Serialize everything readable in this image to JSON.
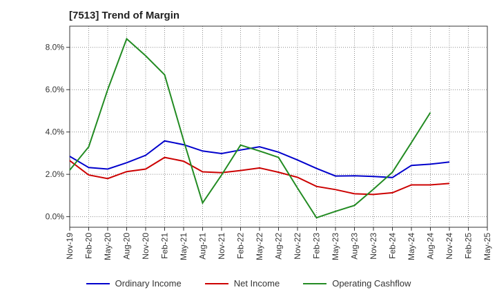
{
  "title": "[7513]  Trend of Margin",
  "chart_data": {
    "type": "line",
    "title": "[7513]  Trend of Margin",
    "categories": [
      "Nov-19",
      "Feb-20",
      "May-20",
      "Aug-20",
      "Nov-20",
      "Feb-21",
      "May-21",
      "Aug-21",
      "Nov-21",
      "Feb-22",
      "May-22",
      "Aug-22",
      "Nov-22",
      "Feb-23",
      "May-23",
      "Aug-23",
      "Nov-23",
      "Feb-24",
      "May-24",
      "Aug-24",
      "Nov-24",
      "Feb-25",
      "May-25"
    ],
    "yticks": [
      "0.0%",
      "2.0%",
      "4.0%",
      "6.0%",
      "8.0%"
    ],
    "ylim": [
      -0.5,
      9.0
    ],
    "grid": true,
    "legend_position": "bottom",
    "series": [
      {
        "name": "Ordinary Income",
        "color": "#0000cc",
        "values": [
          2.85,
          2.32,
          2.25,
          2.55,
          2.9,
          3.58,
          3.4,
          3.1,
          2.98,
          3.15,
          3.3,
          3.05,
          2.68,
          2.28,
          1.92,
          1.93,
          1.9,
          1.85,
          2.42,
          2.48,
          2.58,
          null,
          null
        ]
      },
      {
        "name": "Net Income",
        "color": "#cc0000",
        "values": [
          2.65,
          1.97,
          1.8,
          2.13,
          2.25,
          2.8,
          2.62,
          2.12,
          2.08,
          2.18,
          2.3,
          2.1,
          1.86,
          1.43,
          1.28,
          1.08,
          1.05,
          1.13,
          1.5,
          1.5,
          1.57,
          null,
          null
        ]
      },
      {
        "name": "Operating Cashflow",
        "color": "#228b22",
        "values": [
          2.2,
          3.3,
          6.0,
          8.4,
          7.6,
          6.7,
          3.6,
          0.65,
          1.97,
          3.38,
          3.1,
          2.8,
          1.35,
          -0.05,
          0.25,
          0.53,
          1.3,
          2.1,
          3.5,
          4.92,
          null,
          null,
          null
        ]
      }
    ]
  }
}
